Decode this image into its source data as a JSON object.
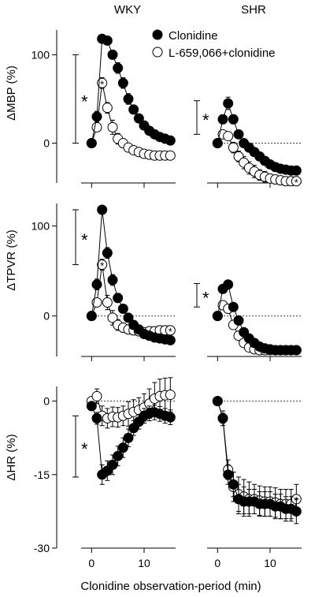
{
  "figure": {
    "column_titles": [
      "WKY",
      "SHR"
    ],
    "xlabel": "Clonidine observation-period (min)",
    "legend": [
      {
        "label": "Clonidine",
        "marker": "filled"
      },
      {
        "label": "L-659,066+clonidine",
        "marker": "open"
      }
    ],
    "significance_symbol": "*",
    "colors": {
      "filled": "#000000",
      "open": "#ffffff",
      "stroke": "#000000"
    }
  },
  "chart_data": [
    {
      "type": "scatter",
      "panel": "WKY",
      "ylabel": "ΔMBP (%)",
      "ylim": [
        -45,
        128
      ],
      "yticks": [
        0,
        100
      ],
      "xlim": [
        -2,
        16
      ],
      "xticks": [
        0,
        10
      ],
      "bracket": [
        0,
        100
      ],
      "series": [
        {
          "name": "Clonidine",
          "x": [
            0,
            1,
            2,
            3,
            4,
            5,
            6,
            7,
            8,
            9,
            10,
            11,
            12,
            13,
            14,
            15
          ],
          "y": [
            0,
            30,
            118,
            116,
            100,
            85,
            68,
            50,
            38,
            28,
            20,
            14,
            10,
            7,
            5,
            3
          ],
          "err": [
            0,
            6,
            3,
            3,
            5,
            6,
            6,
            6,
            5,
            4,
            3,
            3,
            2,
            2,
            2,
            2
          ],
          "starred": [
            2
          ]
        },
        {
          "name": "L-659,066+clonidine",
          "x": [
            0,
            1,
            2,
            3,
            4,
            5,
            6,
            7,
            8,
            9,
            10,
            11,
            12,
            13,
            14,
            15
          ],
          "y": [
            0,
            18,
            68,
            40,
            18,
            5,
            0,
            -5,
            -8,
            -10,
            -12,
            -13,
            -14,
            -14,
            -14,
            -14
          ],
          "err": [
            0,
            4,
            6,
            6,
            8,
            6,
            5,
            4,
            4,
            4,
            4,
            4,
            4,
            4,
            4,
            4
          ],
          "starred": [
            2
          ]
        }
      ]
    },
    {
      "type": "scatter",
      "panel": "SHR",
      "ylabel": "",
      "ylim": [
        -45,
        128
      ],
      "yticks": [],
      "xlim": [
        -2,
        16
      ],
      "xticks": [
        0,
        10
      ],
      "reference_line": 0,
      "bracket": [
        10,
        48
      ],
      "series": [
        {
          "name": "Clonidine",
          "x": [
            0,
            1,
            2,
            3,
            4,
            5,
            6,
            7,
            8,
            9,
            10,
            11,
            12,
            13,
            14,
            15
          ],
          "y": [
            0,
            27,
            45,
            27,
            10,
            0,
            -5,
            -10,
            -15,
            -20,
            -24,
            -27,
            -29,
            -30,
            -31,
            -31
          ],
          "err": [
            0,
            5,
            7,
            5,
            4,
            4,
            3,
            3,
            3,
            3,
            3,
            3,
            3,
            3,
            3,
            3
          ],
          "starred": [
            2,
            15
          ]
        },
        {
          "name": "L-659,066+clonidine",
          "x": [
            0,
            1,
            2,
            3,
            4,
            5,
            6,
            7,
            8,
            9,
            10,
            11,
            12,
            13,
            14,
            15
          ],
          "y": [
            0,
            10,
            8,
            -5,
            -15,
            -22,
            -28,
            -32,
            -36,
            -38,
            -40,
            -41,
            -42,
            -43,
            -43,
            -43
          ],
          "err": [
            0,
            3,
            4,
            6,
            6,
            7,
            7,
            7,
            6,
            6,
            5,
            5,
            5,
            5,
            5,
            5
          ],
          "starred": [
            15
          ]
        }
      ]
    },
    {
      "type": "scatter",
      "panel": "WKY",
      "ylabel": "ΔTPVR (%)",
      "ylim": [
        -45,
        125
      ],
      "yticks": [
        0,
        100
      ],
      "xlim": [
        -2,
        16
      ],
      "xticks": [
        0,
        10
      ],
      "reference_line": 0,
      "bracket": [
        57,
        118
      ],
      "series": [
        {
          "name": "Clonidine",
          "x": [
            0,
            1,
            2,
            3,
            4,
            5,
            6,
            7,
            8,
            9,
            10,
            11,
            12,
            13,
            14,
            15
          ],
          "y": [
            0,
            35,
            118,
            70,
            40,
            20,
            8,
            -2,
            -10,
            -15,
            -20,
            -22,
            -24,
            -25,
            -26,
            -27
          ],
          "err": [
            0,
            6,
            3,
            6,
            6,
            5,
            4,
            4,
            4,
            4,
            3,
            3,
            3,
            3,
            3,
            3
          ],
          "starred": [
            2,
            15
          ]
        },
        {
          "name": "L-659,066+clonidine",
          "x": [
            0,
            1,
            2,
            3,
            4,
            5,
            6,
            7,
            8,
            9,
            10,
            11,
            12,
            13,
            14,
            15
          ],
          "y": [
            0,
            15,
            57,
            15,
            -2,
            -10,
            -13,
            -15,
            -16,
            -17,
            -18,
            -17,
            -17,
            -16,
            -16,
            -16
          ],
          "err": [
            0,
            4,
            6,
            8,
            8,
            6,
            5,
            5,
            5,
            5,
            5,
            5,
            5,
            5,
            5,
            5
          ],
          "starred": [
            2,
            15
          ]
        }
      ]
    },
    {
      "type": "scatter",
      "panel": "SHR",
      "ylabel": "",
      "ylim": [
        -45,
        125
      ],
      "yticks": [],
      "xlim": [
        -2,
        16
      ],
      "xticks": [
        0,
        10
      ],
      "reference_line": 0,
      "bracket": [
        10,
        36
      ],
      "series": [
        {
          "name": "Clonidine",
          "x": [
            0,
            1,
            2,
            3,
            4,
            5,
            6,
            7,
            8,
            9,
            10,
            11,
            12,
            13,
            14,
            15
          ],
          "y": [
            0,
            30,
            35,
            10,
            -5,
            -18,
            -25,
            -30,
            -34,
            -36,
            -37,
            -38,
            -38,
            -38,
            -38,
            -38
          ],
          "err": [
            0,
            4,
            4,
            4,
            4,
            4,
            4,
            3,
            3,
            3,
            3,
            3,
            3,
            3,
            3,
            3
          ],
          "starred": [
            2,
            15
          ]
        },
        {
          "name": "L-659,066+clonidine",
          "x": [
            0,
            1,
            2,
            3,
            4,
            5,
            6,
            7,
            8,
            9,
            10,
            11,
            12,
            13,
            14,
            15
          ],
          "y": [
            0,
            12,
            8,
            -10,
            -22,
            -30,
            -35,
            -37,
            -38,
            -38,
            -38,
            -38,
            -38,
            -38,
            -38,
            -38
          ],
          "err": [
            0,
            3,
            3,
            4,
            4,
            4,
            4,
            3,
            3,
            3,
            3,
            3,
            3,
            3,
            3,
            3
          ],
          "starred": []
        }
      ]
    },
    {
      "type": "scatter",
      "panel": "WKY",
      "ylabel": "ΔHR (%)",
      "ylim": [
        -30,
        3
      ],
      "yticks": [
        0,
        -15,
        -30
      ],
      "xlim": [
        -2,
        16
      ],
      "xticks": [
        0,
        10
      ],
      "reference_line": 0,
      "bracket": [
        -3,
        -15.5
      ],
      "series": [
        {
          "name": "Clonidine",
          "x": [
            0,
            1,
            2,
            3,
            4,
            5,
            6,
            7,
            8,
            9,
            10,
            11,
            12,
            13,
            14,
            15
          ],
          "y": [
            -1,
            -3.5,
            -15,
            -14.2,
            -13,
            -11.2,
            -9.5,
            -7.5,
            -5.5,
            -4.2,
            -3,
            -2.5,
            -2.3,
            -2.6,
            -3,
            -3.3
          ],
          "err": [
            0,
            1.2,
            2,
            2,
            2,
            2,
            2,
            1.8,
            1.5,
            1.5,
            1.5,
            1.5,
            1.5,
            1.5,
            1.5,
            1.5
          ],
          "starred": [
            2,
            15
          ]
        },
        {
          "name": "L-659,066+clonidine",
          "x": [
            0,
            1,
            2,
            3,
            4,
            5,
            6,
            7,
            8,
            9,
            10,
            11,
            12,
            13,
            14,
            15
          ],
          "y": [
            0,
            1,
            -3,
            -3.5,
            -3.2,
            -3.3,
            -3,
            -2.6,
            -2.2,
            -1.8,
            -1.3,
            -0.5,
            0.5,
            1,
            1.2,
            1.3
          ],
          "err": [
            0,
            1.5,
            2,
            2,
            2,
            2,
            2,
            2.5,
            2.5,
            2.5,
            2.8,
            3,
            3.3,
            3.5,
            3.5,
            3.5
          ],
          "starred": []
        }
      ]
    },
    {
      "type": "scatter",
      "panel": "SHR",
      "ylabel": "",
      "ylim": [
        -30,
        3
      ],
      "yticks": [],
      "xlim": [
        -2,
        16
      ],
      "xticks": [
        0,
        10
      ],
      "reference_line": 0,
      "series": [
        {
          "name": "Clonidine",
          "x": [
            0,
            1,
            2,
            3,
            4,
            5,
            6,
            7,
            8,
            9,
            10,
            11,
            12,
            13,
            14,
            15
          ],
          "y": [
            0,
            -3.5,
            -15,
            -17,
            -20,
            -20.5,
            -20.5,
            -20.5,
            -21,
            -21,
            -21,
            -21.5,
            -21.5,
            -22,
            -22,
            -22.5
          ],
          "err": [
            0,
            1,
            2,
            2.5,
            3,
            3,
            2.5,
            2.5,
            2.5,
            2.5,
            2.5,
            2.5,
            2.5,
            2.5,
            2.5,
            2.5
          ],
          "starred": [
            15
          ]
        },
        {
          "name": "L-659,066+clonidine",
          "x": [
            0,
            1,
            2,
            3,
            4,
            5,
            6,
            7,
            8,
            9,
            10,
            11,
            12,
            13,
            14,
            15
          ],
          "y": [
            0,
            -3.5,
            -14,
            -17.5,
            -19,
            -19.5,
            -20,
            -20,
            -20.3,
            -20.5,
            -20.5,
            -20.7,
            -21,
            -21,
            -21,
            -20
          ],
          "err": [
            0,
            1.5,
            2,
            3,
            3.5,
            3.5,
            3.5,
            3,
            3,
            3,
            3,
            3,
            3,
            3,
            3,
            3
          ],
          "starred": [
            15
          ]
        }
      ]
    }
  ]
}
